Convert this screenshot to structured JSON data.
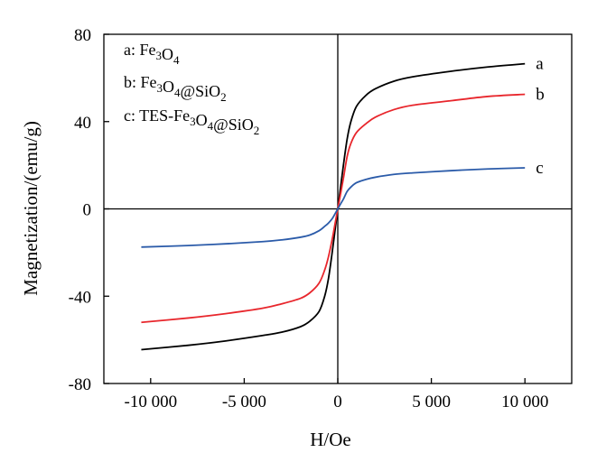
{
  "chart_data": {
    "type": "line",
    "xlabel": "H/Oe",
    "ylabel": "Magnetization/(emu/g)",
    "xlim": [
      -12500,
      12500
    ],
    "ylim": [
      -80,
      80
    ],
    "xticks": [
      -10000,
      -5000,
      0,
      5000,
      10000
    ],
    "xtick_labels": [
      "-10 000",
      "-5 000",
      "0",
      "5 000",
      "10 000"
    ],
    "yticks": [
      -80,
      -40,
      0,
      40,
      80
    ],
    "ytick_labels": [
      "-80",
      "-40",
      "0",
      "40",
      "80"
    ],
    "legend": {
      "position": "top-left",
      "entries": [
        {
          "key": "a",
          "parts": [
            [
              "a: Fe",
              ""
            ],
            [
              "3",
              "sub"
            ],
            [
              "O",
              ""
            ],
            [
              "4",
              "sub"
            ]
          ]
        },
        {
          "key": "b",
          "parts": [
            [
              "b: Fe",
              ""
            ],
            [
              "3",
              "sub"
            ],
            [
              "O",
              ""
            ],
            [
              "4",
              "sub"
            ],
            [
              "@SiO",
              ""
            ],
            [
              "2",
              "sub"
            ]
          ]
        },
        {
          "key": "c",
          "parts": [
            [
              "c: TES-Fe",
              ""
            ],
            [
              "3",
              "sub"
            ],
            [
              "O",
              ""
            ],
            [
              "4",
              "sub"
            ],
            [
              "@SiO",
              ""
            ],
            [
              "2",
              "sub"
            ]
          ]
        }
      ]
    },
    "series": [
      {
        "name": "a",
        "color": "#000000",
        "x": [
          -10500,
          -8000,
          -6000,
          -4000,
          -3000,
          -2000,
          -1500,
          -1000,
          -700,
          -500,
          -300,
          -150,
          0,
          150,
          300,
          500,
          700,
          1000,
          1500,
          2000,
          3000,
          4000,
          6000,
          8000,
          10000
        ],
        "y": [
          -64.5,
          -62.5,
          -60.5,
          -58,
          -56.5,
          -54,
          -51.5,
          -47,
          -40,
          -32,
          -20,
          -10,
          0,
          10,
          20,
          32,
          40,
          47,
          52,
          55,
          58.5,
          60.5,
          63,
          65,
          66.5
        ]
      },
      {
        "name": "b",
        "color": "#e8262c",
        "x": [
          -10500,
          -8000,
          -6000,
          -4000,
          -3000,
          -2000,
          -1500,
          -1000,
          -700,
          -500,
          -300,
          -150,
          0,
          150,
          300,
          500,
          700,
          1000,
          1500,
          2000,
          3000,
          4000,
          6000,
          8000,
          10000
        ],
        "y": [
          -52,
          -50,
          -48,
          -45.5,
          -43.5,
          -41,
          -38.5,
          -34,
          -28,
          -22,
          -14,
          -7,
          0,
          7,
          14,
          24,
          30,
          35,
          39,
          42,
          45.5,
          47.5,
          49.5,
          51.5,
          52.5
        ]
      },
      {
        "name": "c",
        "color": "#2b5ba9",
        "x": [
          -10500,
          -8000,
          -6000,
          -4000,
          -3000,
          -2000,
          -1500,
          -1000,
          -700,
          -500,
          -300,
          -150,
          0,
          150,
          300,
          500,
          700,
          1000,
          1500,
          2000,
          3000,
          4000,
          6000,
          8000,
          10000
        ],
        "y": [
          -17.5,
          -16.8,
          -16,
          -15,
          -14.2,
          -13,
          -12,
          -10,
          -8,
          -6.5,
          -4.5,
          -2.3,
          0,
          2.3,
          4.5,
          8,
          10,
          12,
          13.5,
          14.5,
          15.8,
          16.5,
          17.5,
          18.3,
          18.8
        ]
      }
    ]
  }
}
